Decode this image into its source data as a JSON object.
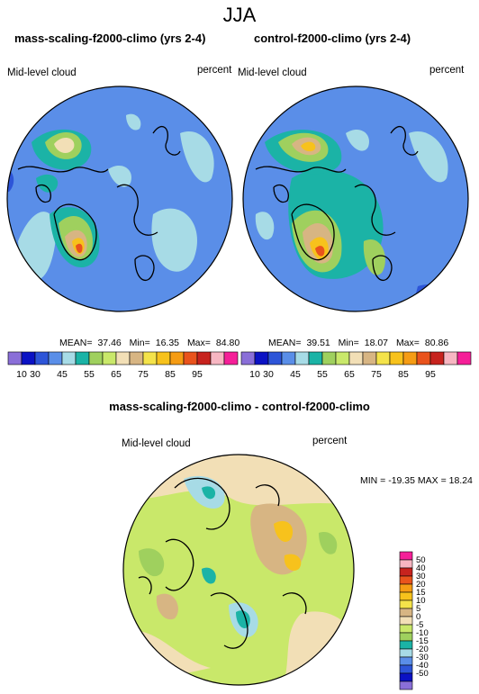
{
  "page_title": "JJA",
  "panels": [
    {
      "title": "mass-scaling-f2000-climo (yrs 2-4)",
      "variable": "Mid-level cloud",
      "units": "percent",
      "stats": {
        "mean_label": "MEAN=",
        "mean": "37.46",
        "min_label": "Min=",
        "min": "16.35",
        "max_label": "Max=",
        "max": "84.80"
      }
    },
    {
      "title": "control-f2000-climo (yrs 2-4)",
      "variable": "Mid-level cloud",
      "units": "percent",
      "stats": {
        "mean_label": "MEAN=",
        "mean": "39.51",
        "min_label": "Min=",
        "min": "18.07",
        "max_label": "Max=",
        "max": "80.86"
      }
    }
  ],
  "top_colorbar": {
    "colors": [
      "#8a6fd8",
      "#0b12c4",
      "#2d55d8",
      "#5a8ee8",
      "#a7dbe6",
      "#1bb3a6",
      "#9fd05e",
      "#c9e86a",
      "#f2dfb6",
      "#d7b583",
      "#f4e34a",
      "#f7c21c",
      "#f59c14",
      "#e9531c",
      "#c7231e",
      "#f7b6c2",
      "#f51f98"
    ],
    "tick_labels": [
      "10",
      "30",
      "45",
      "55",
      "65",
      "75",
      "85",
      "95"
    ]
  },
  "diff_panel": {
    "title": "mass-scaling-f2000-climo - control-f2000-climo",
    "variable": "Mid-level cloud",
    "units": "percent",
    "minmax": "MIN = -19.35  MAX =  18.24"
  },
  "diff_colorbar": {
    "colors": [
      "#8a6fd8",
      "#0b12c4",
      "#2d55d8",
      "#5a8ee8",
      "#a7dbe6",
      "#1bb3a6",
      "#9fd05e",
      "#c9e86a",
      "#f2dfb6",
      "#d7b583",
      "#f4e34a",
      "#f7c21c",
      "#f59c14",
      "#e9531c",
      "#c7231e",
      "#f7b6c2",
      "#f51f98"
    ],
    "tick_labels": [
      "-50",
      "-40",
      "-30",
      "-20",
      "-15",
      "-10",
      "-5",
      "0",
      "5",
      "10",
      "15",
      "20",
      "30",
      "40",
      "50"
    ]
  }
}
